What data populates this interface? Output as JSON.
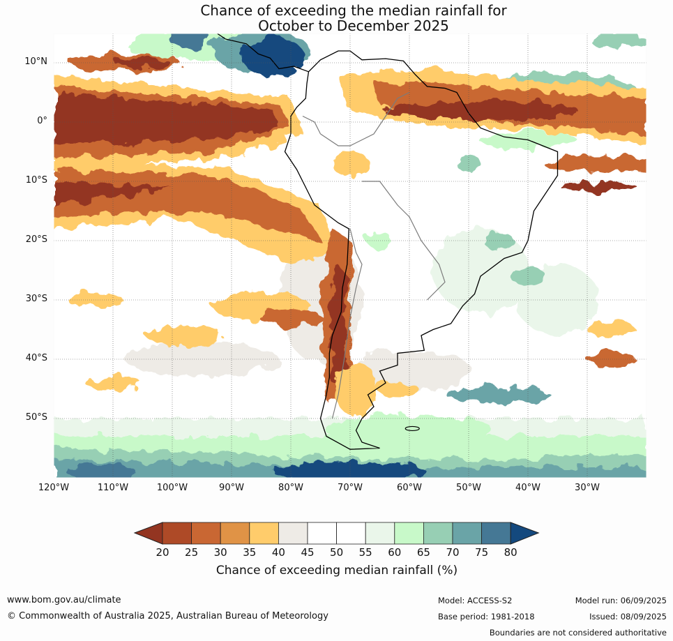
{
  "title": {
    "line1": "Chance of exceeding the median rainfall for",
    "line2": "October to December 2025"
  },
  "map": {
    "lat_labels": [
      "10°N",
      "0°",
      "10°S",
      "20°S",
      "30°S",
      "40°S",
      "50°S"
    ],
    "lon_labels": [
      "120°W",
      "110°W",
      "100°W",
      "90°W",
      "80°W",
      "70°W",
      "60°W",
      "50°W",
      "40°W",
      "30°W"
    ],
    "colors": {
      "p20": "#933521",
      "p25": "#ae4a27",
      "p30": "#c96733",
      "p35": "#e09346",
      "p40": "#ffcc6b",
      "p45": "#eeebe6",
      "p50": "#ffffff",
      "p55": "#ffffff",
      "p60": "#eaf6ea",
      "p65": "#c8f9c9",
      "p70": "#97cfb4",
      "p75": "#6aa4a7",
      "p80": "#457895",
      "p85": "#14497e"
    }
  },
  "colorbar": {
    "ticks": [
      "20",
      "25",
      "30",
      "35",
      "40",
      "45",
      "50",
      "55",
      "60",
      "65",
      "70",
      "75",
      "80"
    ],
    "colors": [
      "#933521",
      "#ae4a27",
      "#c96733",
      "#e09346",
      "#ffcc6b",
      "#eeebe6",
      "#ffffff",
      "#ffffff",
      "#eaf6ea",
      "#c8f9c9",
      "#97cfb4",
      "#6aa4a7",
      "#457895",
      "#14497e"
    ],
    "title": "Chance of exceeding median rainfall (%)"
  },
  "footer": {
    "website": "www.bom.gov.au/climate",
    "copyright": "© Commonwealth of Australia 2025, Australian Bureau of Meteorology",
    "model": "Model: ACCESS-S2",
    "base_period": "Base period: 1981-2018",
    "model_run": "Model run: 06/09/2025",
    "issued": "Issued: 08/09/2025",
    "disclaimer": "Boundaries are not considered authoritative"
  }
}
